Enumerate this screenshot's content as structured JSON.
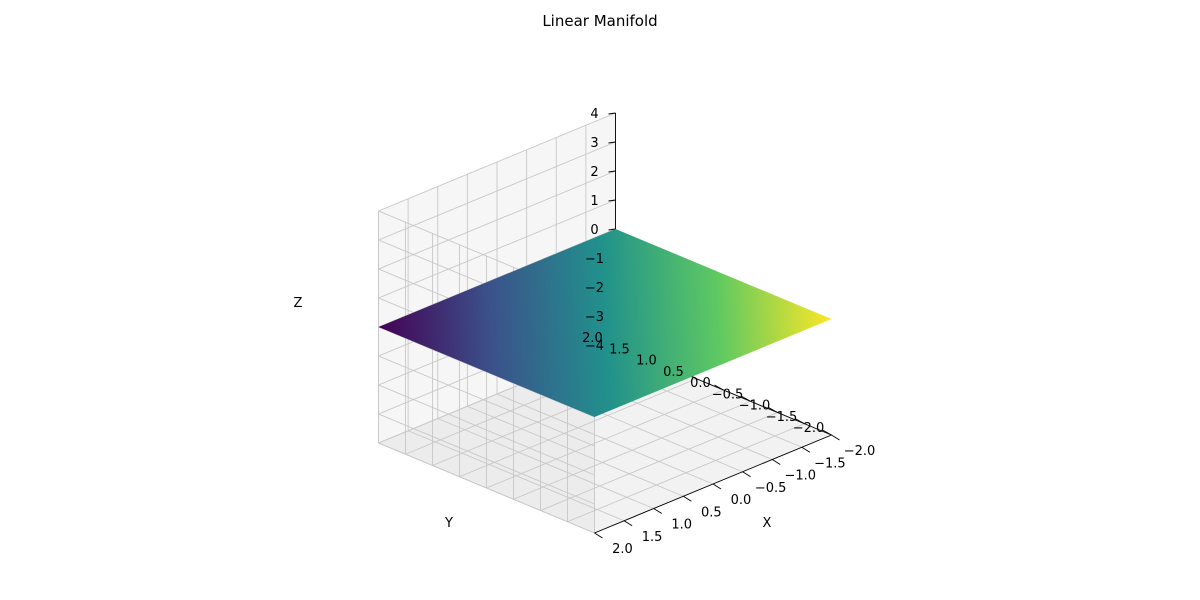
{
  "chart_data": {
    "type": "surface3d",
    "title": "Linear Manifold",
    "xlabel": "X",
    "ylabel": "Y",
    "zlabel": "Z",
    "xlim": [
      -2,
      2
    ],
    "ylim": [
      -2,
      2
    ],
    "zlim": [
      -4,
      4
    ],
    "xticks": [
      "−2.0",
      "−1.5",
      "−1.0",
      "−0.5",
      "0.0",
      "0.5",
      "1.0",
      "1.5",
      "2.0"
    ],
    "yticks": [
      "−2.0",
      "−1.5",
      "−1.0",
      "−0.5",
      "0.0",
      "0.5",
      "1.0",
      "1.5",
      "2.0"
    ],
    "zticks": [
      "−4",
      "−3",
      "−2",
      "−1",
      "0",
      "1",
      "2",
      "3",
      "4"
    ],
    "colormap": "viridis",
    "surface_corners": [
      {
        "x": 2,
        "y": 2,
        "color": "#440154"
      },
      {
        "x": -2,
        "y": 2,
        "color": "#21918c"
      },
      {
        "x": -2,
        "y": -2,
        "color": "#fde725"
      },
      {
        "x": 2,
        "y": -2,
        "color": "#21918c"
      }
    ],
    "pane_color": "#f2f2f2",
    "grid": true
  }
}
